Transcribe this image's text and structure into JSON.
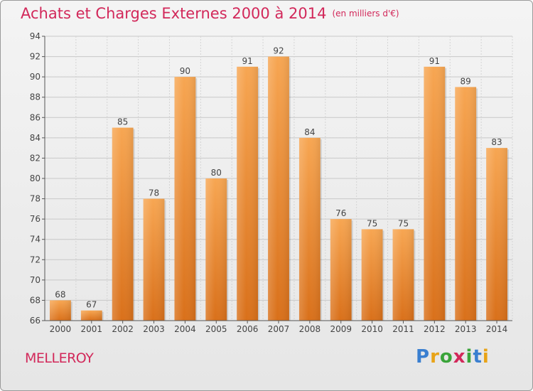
{
  "header": {
    "title": "Achats et Charges Externes 2000 à 2014",
    "subtitle": "(en milliers d'€)"
  },
  "footer": {
    "town": "MELLEROY",
    "brand": [
      "P",
      "r",
      "o",
      "x",
      "i",
      "t",
      "i"
    ],
    "brand_colors": [
      "#3a7fd0",
      "#e8a317",
      "#3aa43a",
      "#d2285a",
      "#3aa43a",
      "#3a7fd0",
      "#e8a317"
    ]
  },
  "chart_data": {
    "type": "bar",
    "categories": [
      "2000",
      "2001",
      "2002",
      "2003",
      "2004",
      "2005",
      "2006",
      "2007",
      "2008",
      "2009",
      "2010",
      "2011",
      "2012",
      "2013",
      "2014"
    ],
    "values": [
      68,
      67,
      85,
      78,
      90,
      80,
      91,
      92,
      84,
      76,
      75,
      75,
      91,
      89,
      83
    ],
    "title": "Achats et Charges Externes 2000 à 2014",
    "xlabel": "",
    "ylabel": "",
    "ylim": [
      66,
      94
    ],
    "yticks": [
      66,
      68,
      70,
      72,
      74,
      76,
      78,
      80,
      82,
      84,
      86,
      88,
      90,
      92,
      94
    ],
    "grid": true,
    "bar_color": "#f0902a"
  }
}
